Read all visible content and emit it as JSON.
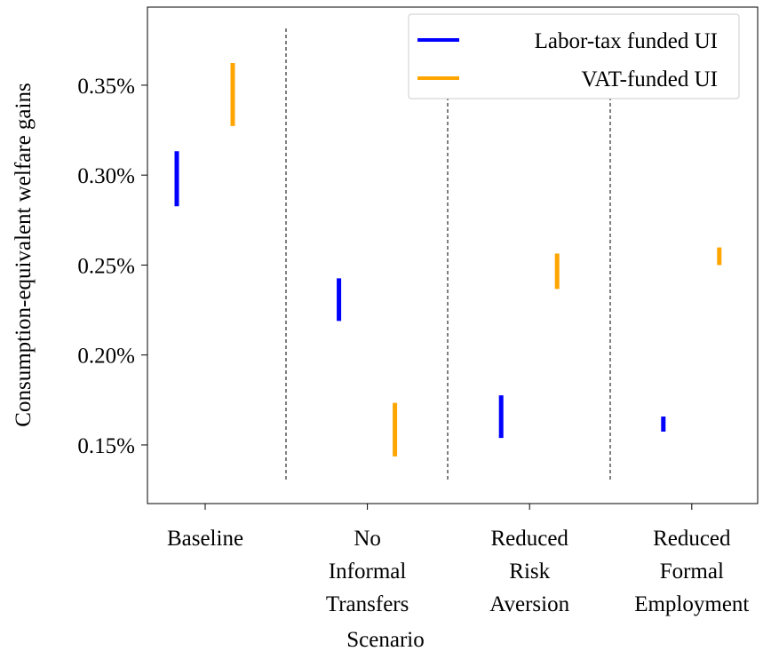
{
  "chart_data": {
    "type": "floating-range",
    "x_label": "Scenario",
    "y_label": "Consumption-equivalent welfare gains",
    "categories": [
      [
        "Baseline"
      ],
      [
        "No",
        "Informal",
        "Transfers"
      ],
      [
        "Reduced",
        "Risk",
        "Aversion"
      ],
      [
        "Reduced",
        "Formal",
        "Employment"
      ]
    ],
    "series": [
      {
        "name": "Labor-tax funded UI",
        "color": "#0000ff",
        "low": [
          0.2827,
          0.2189,
          0.1539,
          0.1574
        ],
        "high": [
          0.3133,
          0.2426,
          0.1776,
          0.1658
        ]
      },
      {
        "name": "VAT-funded UI",
        "color": "#ffa500",
        "low": [
          0.3273,
          0.1436,
          0.2367,
          0.25
        ],
        "high": [
          0.3623,
          0.1734,
          0.2564,
          0.2598
        ]
      }
    ],
    "ylim": [
      0.1174,
      0.3934
    ],
    "yticks": [
      {
        "value": 0.15,
        "label": "0.15%"
      },
      {
        "value": 0.2,
        "label": "0.20%"
      },
      {
        "value": 0.25,
        "label": "0.25%"
      },
      {
        "value": 0.3,
        "label": "0.30%"
      },
      {
        "value": 0.35,
        "label": "0.35%"
      }
    ],
    "legend": "upper right"
  }
}
